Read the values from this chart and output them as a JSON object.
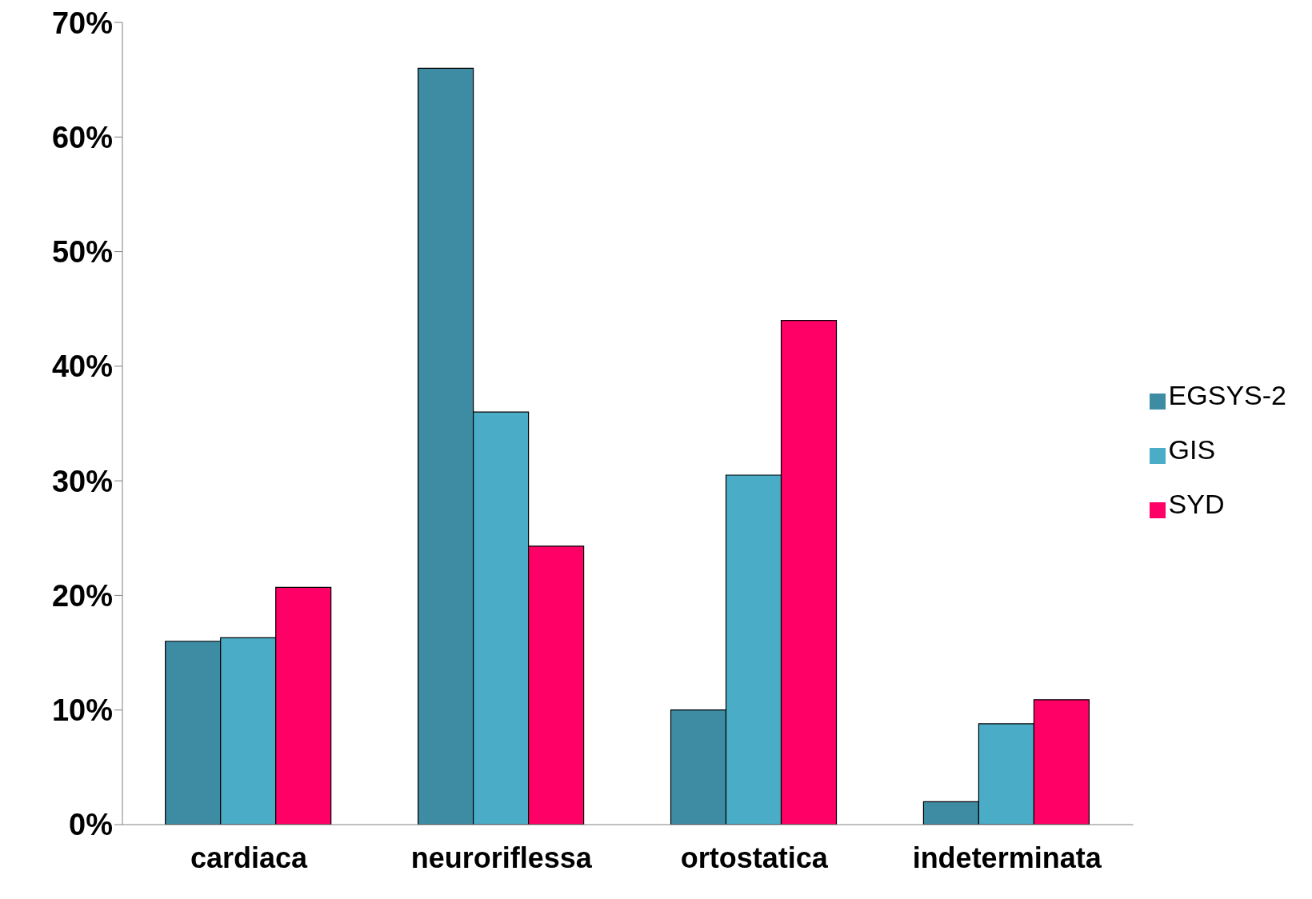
{
  "chart_data": {
    "type": "bar",
    "categories": [
      "cardiaca",
      "neuroriflessa",
      "ortostatica",
      "indeterminata"
    ],
    "series": [
      {
        "name": "EGSYS-2",
        "color": "#3d8ca3",
        "values": [
          16,
          66,
          10,
          2
        ]
      },
      {
        "name": "GIS",
        "color": "#4aacc6",
        "values": [
          16.3,
          36,
          30.5,
          8.8
        ]
      },
      {
        "name": "SYD",
        "color": "#ff0066",
        "values": [
          20.7,
          24.3,
          44,
          10.9
        ]
      }
    ],
    "ylim": [
      0,
      70
    ],
    "yticks": [
      {
        "value": 0,
        "label": "0%"
      },
      {
        "value": 10,
        "label": "10%"
      },
      {
        "value": 20,
        "label": "20%"
      },
      {
        "value": 30,
        "label": "30%"
      },
      {
        "value": 40,
        "label": "40%"
      },
      {
        "value": 50,
        "label": "50%"
      },
      {
        "value": 60,
        "label": "60%"
      },
      {
        "value": 70,
        "label": "70%"
      }
    ],
    "grid": false,
    "legend": "right"
  }
}
